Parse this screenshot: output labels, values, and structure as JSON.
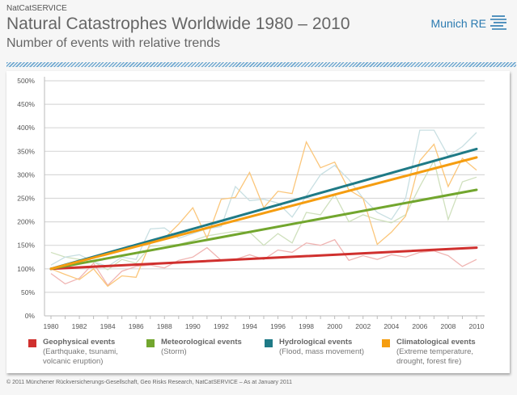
{
  "header": {
    "kicker": "NatCatSERVICE",
    "title": "Natural Catastrophes Worldwide 1980 – 2010",
    "subtitle": "Number of events with relative trends",
    "logo": "Munich RE"
  },
  "footer": "© 2011 Münchener Rückversicherungs-Gesellschaft, Geo Risks Research, NatCatSERVICE – As at January 2011",
  "chart_data": {
    "type": "line",
    "title": "Natural Catastrophes Worldwide 1980 – 2010",
    "subtitle": "Number of events with relative trends",
    "xlabel": "",
    "ylabel": "",
    "ylim": [
      0,
      500
    ],
    "yticks": [
      "0%",
      "50%",
      "100%",
      "150%",
      "200%",
      "250%",
      "300%",
      "350%",
      "400%",
      "450%",
      "500%"
    ],
    "xticks": [
      "1980",
      "1982",
      "1984",
      "1986",
      "1988",
      "1990",
      "1992",
      "1994",
      "1996",
      "1998",
      "2000",
      "2002",
      "2004",
      "2006",
      "2008",
      "2010"
    ],
    "x": [
      1980,
      1981,
      1982,
      1983,
      1984,
      1985,
      1986,
      1987,
      1988,
      1989,
      1990,
      1991,
      1992,
      1993,
      1994,
      1995,
      1996,
      1997,
      1998,
      1999,
      2000,
      2001,
      2002,
      2003,
      2004,
      2005,
      2006,
      2007,
      2008,
      2009,
      2010
    ],
    "grid": true,
    "legend_position": "bottom",
    "series": [
      {
        "name": "Geophysical events",
        "desc": "(Earthquake, tsunami, volcanic eruption)",
        "color": "#d0302e",
        "light": "#f0b5b3",
        "values": [
          90,
          68,
          80,
          112,
          65,
          95,
          105,
          108,
          102,
          118,
          125,
          145,
          118,
          120,
          130,
          120,
          140,
          135,
          155,
          150,
          162,
          118,
          128,
          120,
          130,
          125,
          135,
          138,
          128,
          105,
          120
        ],
        "trend": [
          100,
          145
        ]
      },
      {
        "name": "Meteorological events",
        "desc": "(Storm)",
        "color": "#72a62e",
        "light": "#cfe0bd",
        "values": [
          135,
          125,
          120,
          115,
          98,
          120,
          112,
          148,
          150,
          152,
          160,
          170,
          175,
          180,
          178,
          150,
          175,
          155,
          220,
          215,
          258,
          200,
          215,
          205,
          198,
          215,
          275,
          330,
          205,
          285,
          295
        ],
        "trend": [
          100,
          268
        ]
      },
      {
        "name": "Hydrological events",
        "desc": "(Flood, mass movement)",
        "color": "#1f7a86",
        "light": "#c8dfe2",
        "values": [
          108,
          125,
          130,
          115,
          105,
          125,
          120,
          185,
          187,
          165,
          175,
          185,
          190,
          275,
          245,
          248,
          240,
          210,
          255,
          300,
          320,
          290,
          250,
          220,
          205,
          250,
          395,
          395,
          340,
          360,
          390
        ],
        "trend": [
          100,
          355
        ]
      },
      {
        "name": "Climatological events",
        "desc": "(Extreme temperature, drought, forest fire)",
        "color": "#f59d10",
        "light": "#fbc67a",
        "values": [
          100,
          88,
          77,
          100,
          63,
          85,
          82,
          155,
          165,
          195,
          230,
          165,
          248,
          252,
          305,
          230,
          265,
          260,
          370,
          315,
          327,
          268,
          250,
          152,
          178,
          212,
          330,
          365,
          275,
          335,
          310
        ],
        "trend": [
          100,
          337
        ]
      }
    ]
  }
}
